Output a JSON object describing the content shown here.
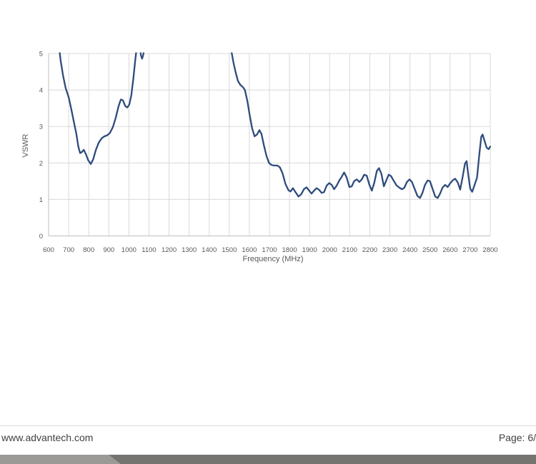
{
  "footer": {
    "website": "www.advantech.com",
    "page_label": "Page: 6/"
  },
  "colors": {
    "line": "#2e4b7d",
    "gridline": "#d9d9d9",
    "axis_line": "#bfbfbf",
    "tick_text": "#595959",
    "footer_text": "#404040",
    "bar_dark": "#767471",
    "bar_light": "#9c9a97"
  },
  "chart_data": {
    "type": "line",
    "title": "",
    "xlabel": "Frequency (MHz)",
    "ylabel": "VSWR",
    "xlim": [
      600,
      2800
    ],
    "ylim": [
      0,
      5
    ],
    "xticks": [
      600,
      700,
      800,
      900,
      1000,
      1100,
      1200,
      1300,
      1400,
      1500,
      1600,
      1700,
      1800,
      1900,
      2000,
      2100,
      2200,
      2300,
      2400,
      2500,
      2600,
      2700,
      2800
    ],
    "yticks": [
      0,
      1,
      2,
      3,
      4,
      5
    ],
    "grid": true,
    "legend": "none",
    "clipped_above_y": 5,
    "series": [
      {
        "name": "VSWR",
        "points": [
          [
            640,
            6.0
          ],
          [
            650,
            5.3
          ],
          [
            660,
            4.8
          ],
          [
            672,
            4.4
          ],
          [
            685,
            4.05
          ],
          [
            700,
            3.8
          ],
          [
            712,
            3.5
          ],
          [
            725,
            3.15
          ],
          [
            738,
            2.8
          ],
          [
            748,
            2.45
          ],
          [
            757,
            2.27
          ],
          [
            766,
            2.3
          ],
          [
            775,
            2.36
          ],
          [
            786,
            2.24
          ],
          [
            797,
            2.08
          ],
          [
            810,
            1.97
          ],
          [
            822,
            2.1
          ],
          [
            835,
            2.35
          ],
          [
            850,
            2.56
          ],
          [
            865,
            2.68
          ],
          [
            878,
            2.73
          ],
          [
            892,
            2.76
          ],
          [
            905,
            2.82
          ],
          [
            920,
            2.98
          ],
          [
            935,
            3.25
          ],
          [
            948,
            3.55
          ],
          [
            960,
            3.74
          ],
          [
            970,
            3.72
          ],
          [
            982,
            3.56
          ],
          [
            992,
            3.52
          ],
          [
            1002,
            3.6
          ],
          [
            1012,
            3.85
          ],
          [
            1022,
            4.3
          ],
          [
            1032,
            4.85
          ],
          [
            1042,
            5.3
          ],
          [
            1052,
            5.35
          ],
          [
            1060,
            4.95
          ],
          [
            1066,
            4.86
          ],
          [
            1072,
            4.98
          ],
          [
            1080,
            5.35
          ],
          [
            1100,
            6.3
          ],
          [
            1180,
            7.8
          ],
          [
            1300,
            8.4
          ],
          [
            1420,
            7.8
          ],
          [
            1480,
            6.2
          ],
          [
            1502,
            5.3
          ],
          [
            1512,
            5.02
          ],
          [
            1522,
            4.72
          ],
          [
            1532,
            4.48
          ],
          [
            1543,
            4.25
          ],
          [
            1555,
            4.14
          ],
          [
            1568,
            4.08
          ],
          [
            1578,
            4.0
          ],
          [
            1590,
            3.7
          ],
          [
            1602,
            3.3
          ],
          [
            1614,
            2.95
          ],
          [
            1626,
            2.73
          ],
          [
            1638,
            2.78
          ],
          [
            1650,
            2.9
          ],
          [
            1660,
            2.8
          ],
          [
            1672,
            2.5
          ],
          [
            1685,
            2.2
          ],
          [
            1698,
            2.0
          ],
          [
            1712,
            1.94
          ],
          [
            1726,
            1.93
          ],
          [
            1740,
            1.93
          ],
          [
            1752,
            1.88
          ],
          [
            1765,
            1.72
          ],
          [
            1780,
            1.42
          ],
          [
            1795,
            1.25
          ],
          [
            1805,
            1.22
          ],
          [
            1817,
            1.31
          ],
          [
            1830,
            1.2
          ],
          [
            1845,
            1.08
          ],
          [
            1858,
            1.14
          ],
          [
            1872,
            1.28
          ],
          [
            1885,
            1.33
          ],
          [
            1898,
            1.24
          ],
          [
            1910,
            1.16
          ],
          [
            1922,
            1.24
          ],
          [
            1935,
            1.31
          ],
          [
            1948,
            1.26
          ],
          [
            1960,
            1.18
          ],
          [
            1972,
            1.2
          ],
          [
            1985,
            1.38
          ],
          [
            1998,
            1.45
          ],
          [
            2010,
            1.4
          ],
          [
            2022,
            1.28
          ],
          [
            2035,
            1.38
          ],
          [
            2048,
            1.52
          ],
          [
            2060,
            1.62
          ],
          [
            2072,
            1.74
          ],
          [
            2085,
            1.6
          ],
          [
            2098,
            1.34
          ],
          [
            2110,
            1.36
          ],
          [
            2122,
            1.5
          ],
          [
            2135,
            1.55
          ],
          [
            2148,
            1.48
          ],
          [
            2160,
            1.55
          ],
          [
            2172,
            1.68
          ],
          [
            2185,
            1.65
          ],
          [
            2198,
            1.4
          ],
          [
            2210,
            1.24
          ],
          [
            2222,
            1.45
          ],
          [
            2235,
            1.78
          ],
          [
            2246,
            1.86
          ],
          [
            2258,
            1.7
          ],
          [
            2270,
            1.36
          ],
          [
            2282,
            1.52
          ],
          [
            2294,
            1.68
          ],
          [
            2306,
            1.64
          ],
          [
            2320,
            1.5
          ],
          [
            2334,
            1.38
          ],
          [
            2348,
            1.32
          ],
          [
            2360,
            1.28
          ],
          [
            2372,
            1.32
          ],
          [
            2385,
            1.48
          ],
          [
            2398,
            1.55
          ],
          [
            2410,
            1.48
          ],
          [
            2424,
            1.28
          ],
          [
            2437,
            1.1
          ],
          [
            2450,
            1.04
          ],
          [
            2462,
            1.18
          ],
          [
            2475,
            1.4
          ],
          [
            2488,
            1.52
          ],
          [
            2500,
            1.5
          ],
          [
            2512,
            1.3
          ],
          [
            2526,
            1.08
          ],
          [
            2538,
            1.04
          ],
          [
            2550,
            1.16
          ],
          [
            2562,
            1.32
          ],
          [
            2575,
            1.4
          ],
          [
            2588,
            1.34
          ],
          [
            2600,
            1.44
          ],
          [
            2612,
            1.52
          ],
          [
            2625,
            1.57
          ],
          [
            2638,
            1.47
          ],
          [
            2650,
            1.27
          ],
          [
            2662,
            1.6
          ],
          [
            2674,
            1.98
          ],
          [
            2682,
            2.05
          ],
          [
            2690,
            1.7
          ],
          [
            2700,
            1.3
          ],
          [
            2710,
            1.21
          ],
          [
            2722,
            1.4
          ],
          [
            2734,
            1.6
          ],
          [
            2745,
            2.2
          ],
          [
            2755,
            2.72
          ],
          [
            2762,
            2.78
          ],
          [
            2772,
            2.6
          ],
          [
            2782,
            2.42
          ],
          [
            2792,
            2.38
          ],
          [
            2800,
            2.45
          ]
        ]
      }
    ]
  }
}
